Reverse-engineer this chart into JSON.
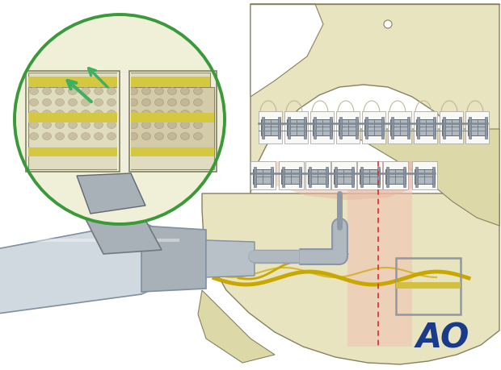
{
  "background_color": "#ffffff",
  "ao_logo_color": "#1a3a8a",
  "ao_text": "AO",
  "skull_fill": "#e8e4c0",
  "skull_fill2": "#ddd8a8",
  "skull_outline": "#888060",
  "tooth_color": "#f8f8f4",
  "brace_fill": "#b0b8c0",
  "brace_dark": "#606870",
  "nerve_color": "#c8a800",
  "inset_bg": "#f0f0d8",
  "inset_border": "#3a9a3a",
  "bone_spongy": "#c8c0a0",
  "yellow_nerve": "#d4c040",
  "cut_pink": "#f0c0b0",
  "dashed_red": "#d83030",
  "plate_gray": "#9098a0",
  "drill_light": "#d0d8e0",
  "drill_mid": "#a8b0b8",
  "drill_dark": "#8090a0",
  "green_arrow": "#40b060",
  "saw_blade_fill": "#a8aab8",
  "gum_pink": "#e8b8a0"
}
